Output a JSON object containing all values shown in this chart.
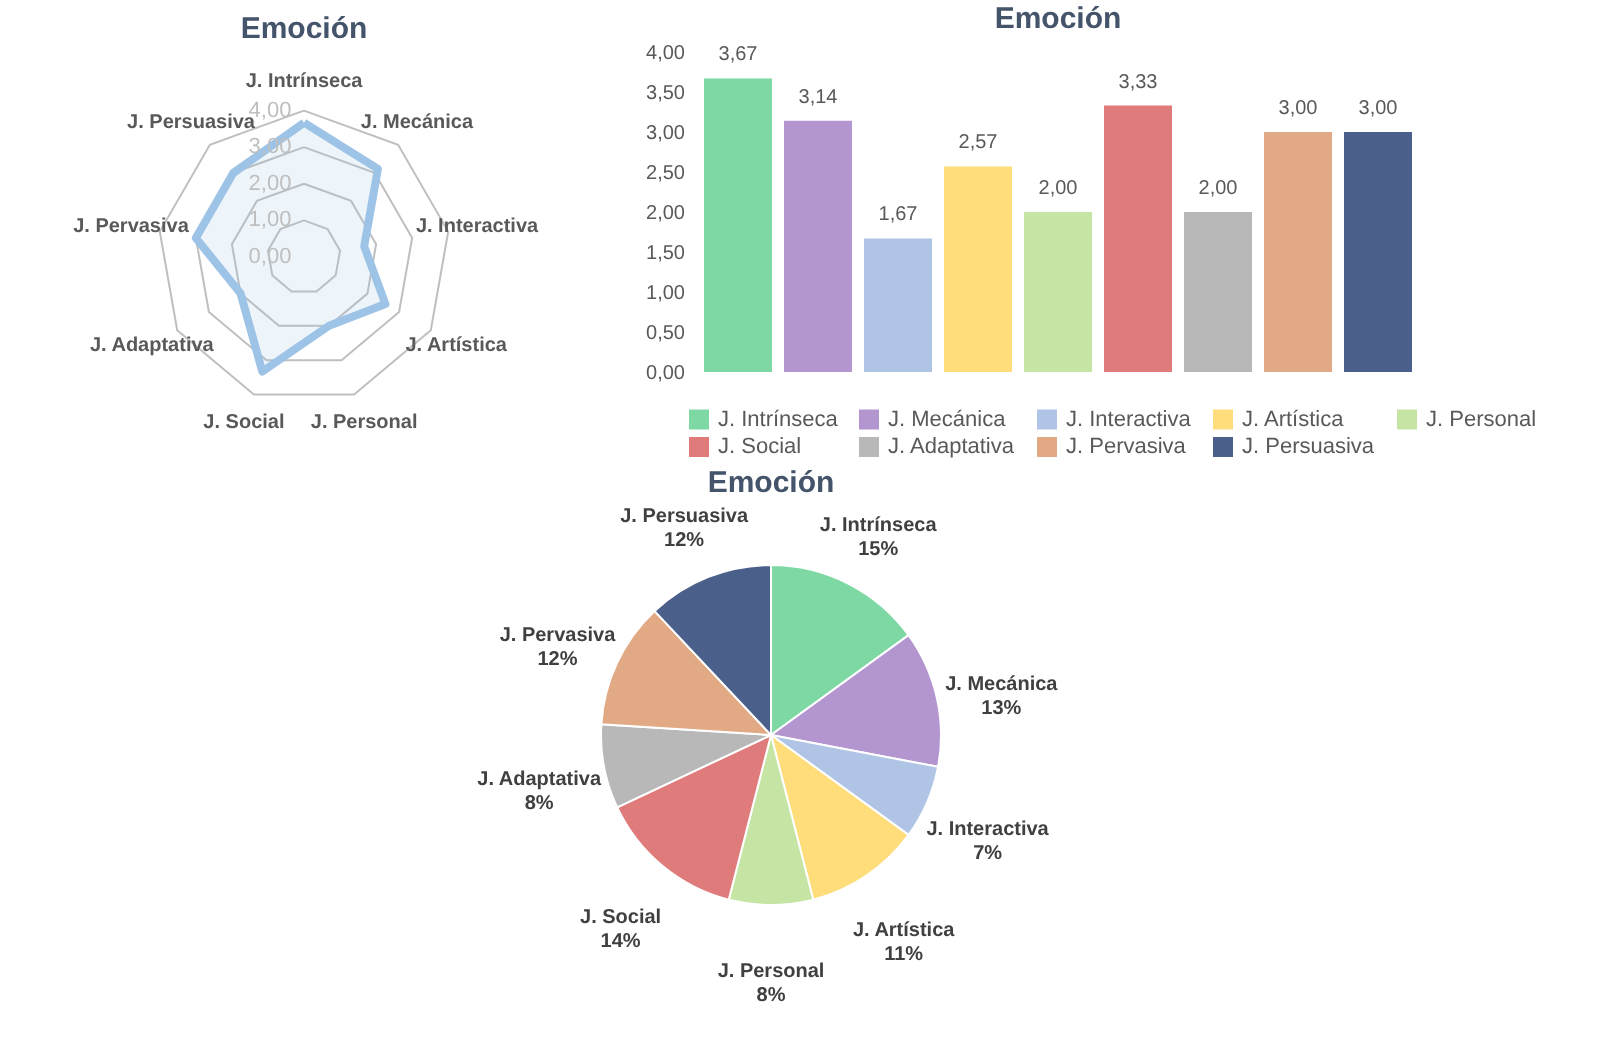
{
  "chart_data": [
    {
      "type": "radar",
      "title": "Emoción",
      "categories": [
        "J. Intrínseca",
        "J. Mecánica",
        "J. Interactiva",
        "J. Artística",
        "J. Personal",
        "J. Social",
        "J. Adaptativa",
        "J. Pervasiva",
        "J. Persuasiva"
      ],
      "series": [
        {
          "color": "#9dc3e6",
          "values": [
            3.67,
            3.14,
            1.67,
            2.57,
            2.0,
            3.33,
            2.0,
            3.0,
            3.0
          ]
        }
      ],
      "ylim": [
        0,
        4
      ],
      "yticks": [
        {
          "value": 0,
          "label": "0,00"
        },
        {
          "value": 1,
          "label": "1,00"
        },
        {
          "value": 2,
          "label": "2,00"
        },
        {
          "value": 3,
          "label": "3,00"
        },
        {
          "value": 4,
          "label": "4,00"
        }
      ],
      "grid": true,
      "legend": false
    },
    {
      "type": "bar",
      "title": "Emoción",
      "categories": [
        null,
        null,
        null,
        null,
        null,
        null,
        null,
        null,
        null
      ],
      "series": [
        {
          "name": "J. Intrínseca",
          "color": "#7dd8a4",
          "values": [
            3.67,
            null,
            null,
            null,
            null,
            null,
            null,
            null,
            null
          ]
        },
        {
          "name": "J. Mecánica",
          "color": "#b396d0",
          "values": [
            null,
            3.14,
            null,
            null,
            null,
            null,
            null,
            null,
            null
          ]
        },
        {
          "name": "J. Interactiva",
          "color": "#b0c4e6",
          "values": [
            null,
            null,
            1.67,
            null,
            null,
            null,
            null,
            null,
            null
          ]
        },
        {
          "name": "J. Artística",
          "color": "#ffdd7a",
          "values": [
            null,
            null,
            null,
            2.57,
            null,
            null,
            null,
            null,
            null
          ]
        },
        {
          "name": "J. Personal",
          "color": "#c6e5a5",
          "values": [
            null,
            null,
            null,
            null,
            2.0,
            null,
            null,
            null,
            null
          ]
        },
        {
          "name": "J. Social",
          "color": "#e07b7b",
          "values": [
            null,
            null,
            null,
            null,
            null,
            3.33,
            null,
            null,
            null
          ]
        },
        {
          "name": "J. Adaptativa",
          "color": "#b8b8b8",
          "values": [
            null,
            null,
            null,
            null,
            null,
            null,
            2.0,
            null,
            null
          ]
        },
        {
          "name": "J. Pervasiva",
          "color": "#e2a985",
          "values": [
            null,
            null,
            null,
            null,
            null,
            null,
            null,
            3.0,
            null
          ]
        },
        {
          "name": "J. Persuasiva",
          "color": "#4a5f8a",
          "values": [
            null,
            null,
            null,
            null,
            null,
            null,
            null,
            null,
            3.0
          ]
        }
      ],
      "value_labels": [
        "3,67",
        "3,14",
        "1,67",
        "2,57",
        "2,00",
        "3,33",
        "2,00",
        "3,00",
        "3,00"
      ],
      "ylim": [
        0,
        4
      ],
      "yticks": [
        {
          "value": 0,
          "label": "0,00"
        },
        {
          "value": 0.5,
          "label": "0,50"
        },
        {
          "value": 1,
          "label": "1,00"
        },
        {
          "value": 1.5,
          "label": "1,50"
        },
        {
          "value": 2,
          "label": "2,00"
        },
        {
          "value": 2.5,
          "label": "2,50"
        },
        {
          "value": 3,
          "label": "3,00"
        },
        {
          "value": 3.5,
          "label": "3,50"
        },
        {
          "value": 4,
          "label": "4,00"
        }
      ],
      "grid": false,
      "legend": "bottom",
      "tick_labels": "y",
      "stacked": true
    },
    {
      "type": "pie",
      "title": "Emoción",
      "categories": [
        "J. Intrínseca",
        "J. Mecánica",
        "J. Interactiva",
        "J. Artística",
        "J. Personal",
        "J. Social",
        "J. Adaptativa",
        "J. Pervasiva",
        "J. Persuasiva"
      ],
      "values": [
        15,
        13,
        7,
        11,
        8,
        14,
        8,
        12,
        12
      ],
      "colors": [
        "#7dd8a4",
        "#b396d0",
        "#b0c4e6",
        "#ffdd7a",
        "#c6e5a5",
        "#e07b7b",
        "#b8b8b8",
        "#e2a985",
        "#4a5f8a"
      ],
      "value_labels": [
        "15%",
        "13%",
        "7%",
        "11%",
        "8%",
        "14%",
        "8%",
        "12%",
        "12%"
      ],
      "legend": false
    }
  ]
}
